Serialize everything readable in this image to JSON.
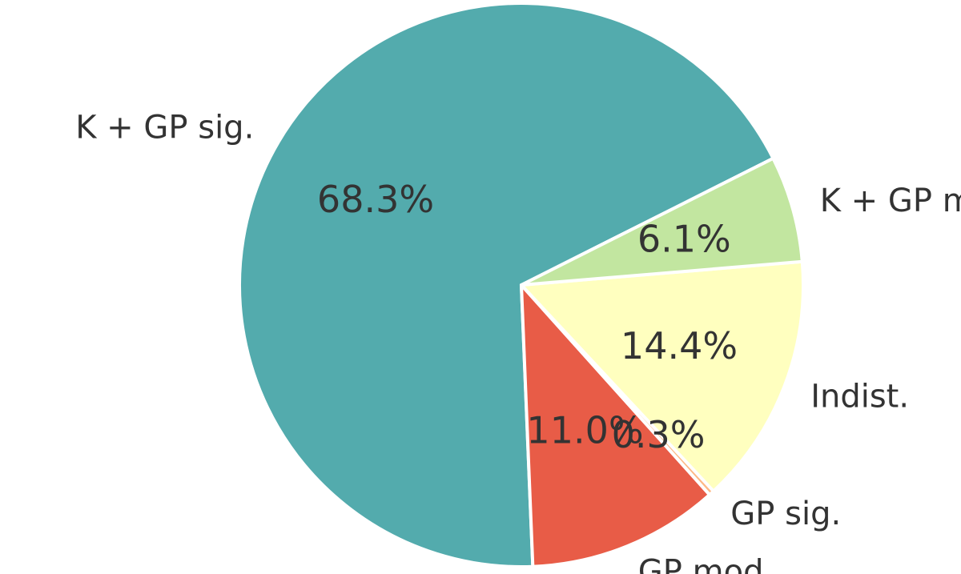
{
  "chart_data": {
    "type": "pie",
    "labels": [
      "K + GP sig.",
      "GP mod.",
      "GP sig.",
      "Indist.",
      "K + GP mod."
    ],
    "values": [
      68.3,
      11.0,
      0.3,
      14.4,
      6.1
    ],
    "value_labels": [
      "68.3%",
      "11.0%",
      "0.3%",
      "14.4%",
      "6.1%"
    ],
    "colors": [
      "#53abad",
      "#e85c47",
      "#fdb985",
      "#ffffbf",
      "#c2e6a0"
    ],
    "start_angle_deg": 26.7,
    "direction": "counterclockwise",
    "title": "",
    "legend": "none"
  }
}
